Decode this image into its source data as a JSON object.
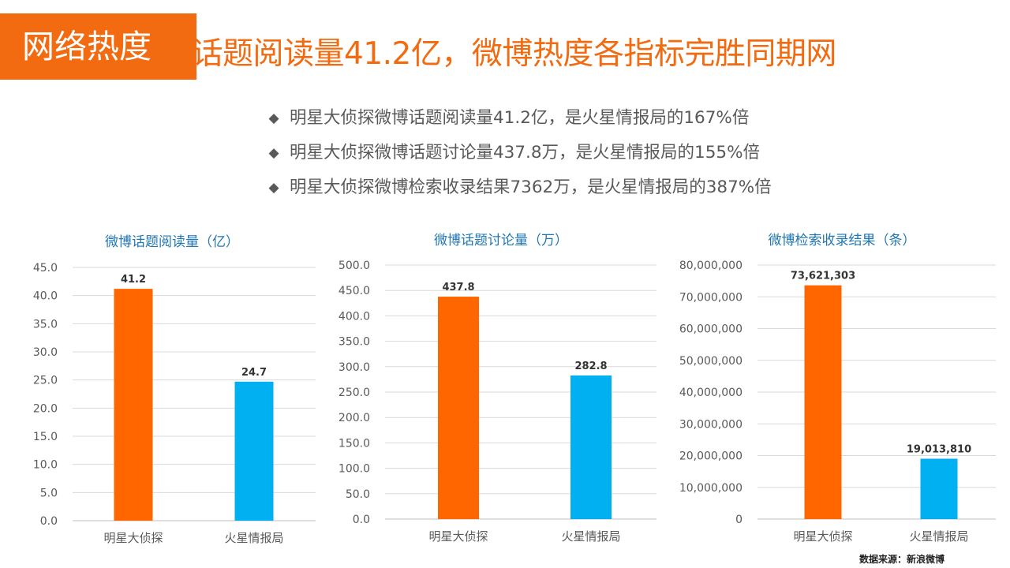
{
  "header": {
    "badge": "网络热度",
    "title": "博话题阅读量41.2亿，微博热度各指标完胜同期网"
  },
  "bullets": [
    "明星大侦探微博话题阅读量41.2亿，是火星情报局的167%倍",
    "明星大侦探微博话题讨论量437.8万，是火星情报局的155%倍",
    "明星大侦探微博检索收录结果7362万，是火星情报局的387%倍"
  ],
  "bullet_icon": "diamond-icon",
  "colors": {
    "accent": "#f26b11",
    "bar1": "#ff6600",
    "bar2": "#00b0f0",
    "chart_title": "#1f77b4"
  },
  "source": "数据来源：新浪微博",
  "chart_data": [
    {
      "type": "bar",
      "title": "微博话题阅读量（亿）",
      "categories": [
        "明星大侦探",
        "火星情报局"
      ],
      "values": [
        41.2,
        24.7
      ],
      "value_labels": [
        "41.2",
        "24.7"
      ],
      "ylim": [
        0,
        45
      ],
      "yticks": [
        "0.0",
        "5.0",
        "10.0",
        "15.0",
        "20.0",
        "25.0",
        "30.0",
        "35.0",
        "40.0",
        "45.0"
      ],
      "grid": true
    },
    {
      "type": "bar",
      "title": "微博话题讨论量（万）",
      "categories": [
        "明星大侦探",
        "火星情报局"
      ],
      "values": [
        437.8,
        282.8
      ],
      "value_labels": [
        "437.8",
        "282.8"
      ],
      "ylim": [
        0,
        500
      ],
      "yticks": [
        "0.0",
        "50.0",
        "100.0",
        "150.0",
        "200.0",
        "250.0",
        "300.0",
        "350.0",
        "400.0",
        "450.0",
        "500.0"
      ],
      "grid": true
    },
    {
      "type": "bar",
      "title": "微博检索收录结果（条）",
      "categories": [
        "明星大侦探",
        "火星情报局"
      ],
      "values": [
        73621303,
        19013810
      ],
      "value_labels": [
        "73,621,303",
        "19,013,810"
      ],
      "ylim": [
        0,
        80000000
      ],
      "yticks": [
        "0",
        "10,000,000",
        "20,000,000",
        "30,000,000",
        "40,000,000",
        "50,000,000",
        "60,000,000",
        "70,000,000",
        "80,000,000"
      ],
      "grid": true
    }
  ]
}
